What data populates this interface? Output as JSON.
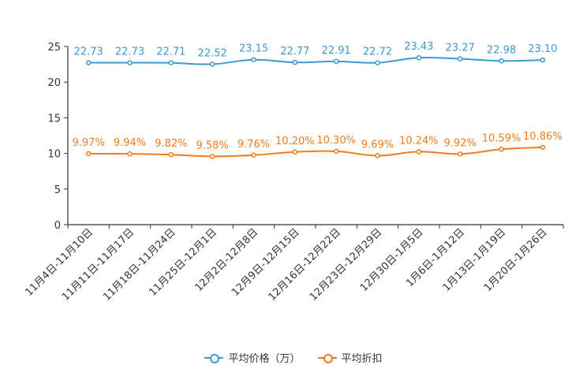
{
  "chart_data": {
    "type": "line",
    "categories": [
      "11月4日-11月10日",
      "11月11日-11月17日",
      "11月18日-11月24日",
      "11月25日-12月1日",
      "12月2日-12月8日",
      "12月9日-12月15日",
      "12月16日-12月22日",
      "12月23日-12月29日",
      "12月30日-1月5日",
      "1月6日-1月12日",
      "1月13日-1月19日",
      "1月20日-1月26日"
    ],
    "ylim": [
      0,
      25
    ],
    "yticks": [
      0,
      5,
      10,
      15,
      20,
      25
    ],
    "series": [
      {
        "name": "平均价格（万）",
        "color": "#3c9ad0",
        "values": [
          22.73,
          22.73,
          22.71,
          22.52,
          23.15,
          22.77,
          22.91,
          22.72,
          23.43,
          23.27,
          22.98,
          23.1
        ],
        "labels": [
          "22.73",
          "22.73",
          "22.71",
          "22.52",
          "23.15",
          "22.77",
          "22.91",
          "22.72",
          "23.43",
          "23.27",
          "22.98",
          "23.10"
        ]
      },
      {
        "name": "平均折扣",
        "color": "#f07b1a",
        "values": [
          9.97,
          9.94,
          9.82,
          9.58,
          9.76,
          10.2,
          10.3,
          9.69,
          10.24,
          9.92,
          10.59,
          10.86
        ],
        "labels": [
          "9.97%",
          "9.94%",
          "9.82%",
          "9.58%",
          "9.76%",
          "10.20%",
          "10.30%",
          "9.69%",
          "10.24%",
          "9.92%",
          "10.59%",
          "10.86%"
        ]
      }
    ]
  }
}
